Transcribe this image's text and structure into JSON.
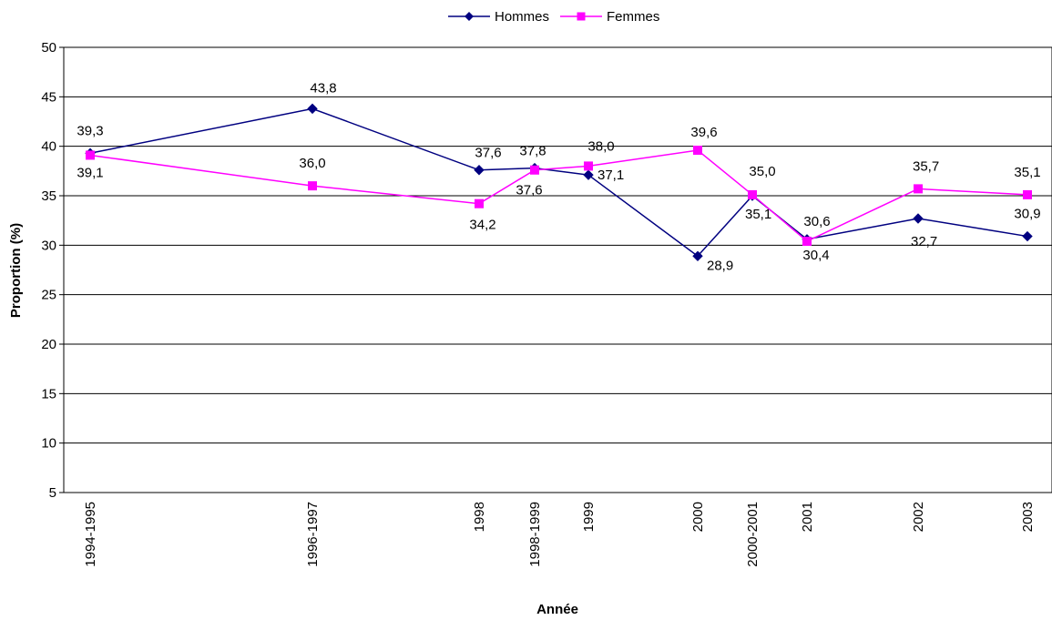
{
  "chart_data": {
    "type": "line",
    "title": "",
    "xlabel": "Année",
    "ylabel": "Proportion (%)",
    "ylim": [
      5,
      50
    ],
    "ytick_step": 5,
    "yticks": [
      "5",
      "10",
      "15",
      "20",
      "25",
      "30",
      "35",
      "40",
      "45",
      "50"
    ],
    "grid": "horizontal",
    "legend_position": "top-center",
    "categories": [
      "1994-1995",
      "1996-1997",
      "1998",
      "1998-1999",
      "1999",
      "2000",
      "2000-2001",
      "2001",
      "2002",
      "2003"
    ],
    "series": [
      {
        "name": "Hommes",
        "color": "#000080",
        "marker": "diamond",
        "values": [
          39.3,
          43.8,
          37.6,
          37.8,
          37.1,
          28.9,
          35.0,
          30.6,
          32.7,
          30.9
        ],
        "labels": [
          "39,3",
          "43,8",
          "37,6",
          "37,8",
          "37,1",
          "28,9",
          "35,0",
          "30,6",
          "32,7",
          "30,9"
        ]
      },
      {
        "name": "Femmes",
        "color": "#FF00FF",
        "marker": "square",
        "values": [
          39.1,
          36.0,
          34.2,
          37.6,
          38.0,
          39.6,
          35.1,
          30.4,
          35.7,
          35.1
        ],
        "labels": [
          "39,1",
          "36,0",
          "34,2",
          "37,6",
          "38,0",
          "39,6",
          "35,1",
          "30,4",
          "35,7",
          "35,1"
        ]
      }
    ]
  }
}
